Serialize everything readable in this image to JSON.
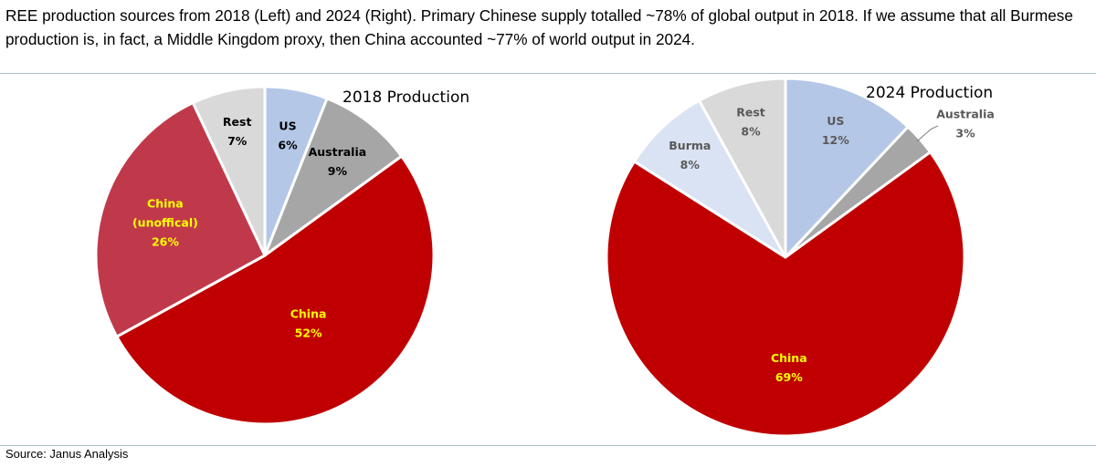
{
  "caption": "REE production sources from 2018 (Left) and 2024 (Right).  Primary Chinese supply totalled ~78% of global output in 2018.  If we assume that all Burmese production is, in fact, a Middle Kingdom proxy, then China accounted ~77% of world output in 2024.",
  "source": "Source: Janus Analysis",
  "colors": {
    "china": "#c00000",
    "china_unofficial": "#c0394b",
    "rest": "#d9d9d9",
    "us": "#b4c7e7",
    "australia": "#a6a6a6",
    "burma": "#dae3f3",
    "label_yellow": "#ffff00",
    "label_dark": "#000000",
    "label_gray": "#595959",
    "border": "#ffffff"
  },
  "chart_data": [
    {
      "type": "pie",
      "title": "2018 Production",
      "slices": [
        {
          "name": "US",
          "value": 6,
          "label": "6%",
          "color_key": "us",
          "label_color": "label_dark"
        },
        {
          "name": "Australia",
          "value": 9,
          "label": "9%",
          "color_key": "australia",
          "label_color": "label_dark"
        },
        {
          "name": "China",
          "value": 52,
          "label": "52%",
          "color_key": "china",
          "label_color": "label_yellow"
        },
        {
          "name": "China (unofficial)",
          "display_lines": [
            "China",
            "(unoffical)"
          ],
          "value": 26,
          "label": "26%",
          "color_key": "china_unofficial",
          "label_color": "label_yellow"
        },
        {
          "name": "Rest",
          "value": 7,
          "label": "7%",
          "color_key": "rest",
          "label_color": "label_dark"
        }
      ]
    },
    {
      "type": "pie",
      "title": "2024 Production",
      "slices": [
        {
          "name": "US",
          "value": 12,
          "label": "12%",
          "color_key": "us",
          "label_color": "label_gray"
        },
        {
          "name": "Australia",
          "value": 3,
          "label": "3%",
          "color_key": "australia",
          "label_color": "label_gray",
          "outside": true
        },
        {
          "name": "China",
          "value": 69,
          "label": "69%",
          "color_key": "china",
          "label_color": "label_yellow"
        },
        {
          "name": "Burma",
          "value": 8,
          "label": "8%",
          "color_key": "burma",
          "label_color": "label_gray"
        },
        {
          "name": "Rest",
          "value": 8,
          "label": "8%",
          "color_key": "rest",
          "label_color": "label_gray"
        }
      ]
    }
  ]
}
